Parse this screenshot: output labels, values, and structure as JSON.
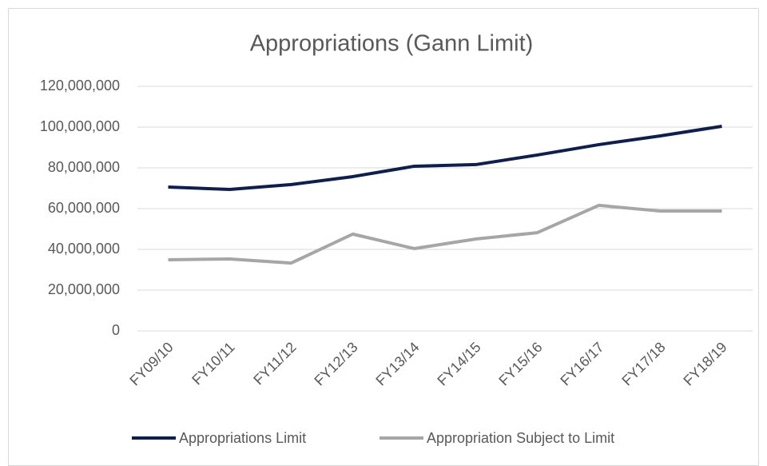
{
  "chart_data": {
    "type": "line",
    "title": "Appropriations (Gann Limit)",
    "categories": [
      "FY09/10",
      "FY10/11",
      "FY11/12",
      "FY12/13",
      "FY13/14",
      "FY14/15",
      "FY15/16",
      "FY16/17",
      "FY17/18",
      "FY18/19"
    ],
    "series": [
      {
        "name": "Appropriations Limit",
        "color": "#0f1f4d",
        "values": [
          70600000,
          69400000,
          71800000,
          75700000,
          80800000,
          81600000,
          86300000,
          91400000,
          95700000,
          100400000
        ]
      },
      {
        "name": "Appropriation Subject to Limit",
        "color": "#a6a6a6",
        "values": [
          34900000,
          35300000,
          33300000,
          47500000,
          40400000,
          45100000,
          48200000,
          61600000,
          58800000,
          58800000
        ]
      }
    ],
    "ylim": [
      0,
      120000000
    ],
    "yticks": [
      0,
      {
        "value": 20000000,
        "label": "20,000,000"
      },
      {
        "value": 40000000,
        "label": "40,000,000"
      },
      {
        "value": 60000000,
        "label": "60,000,000"
      },
      {
        "value": 80000000,
        "label": "80,000,000"
      },
      {
        "value": 100000000,
        "label": "100,000,000"
      },
      {
        "value": 120000000,
        "label": "120,000,000"
      }
    ],
    "grid": true,
    "legend": "bottom"
  }
}
